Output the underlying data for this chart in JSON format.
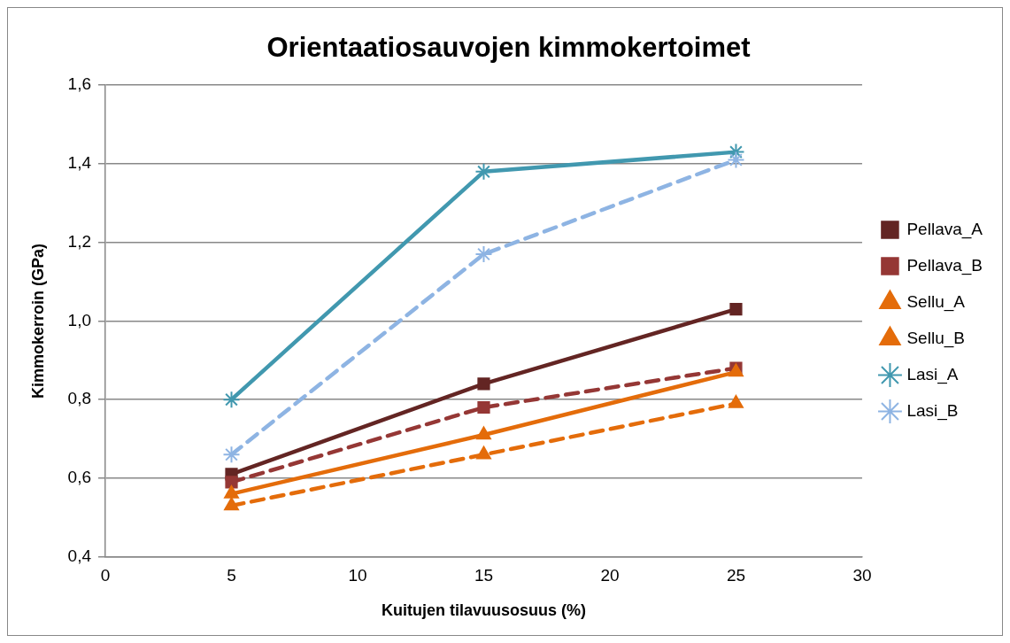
{
  "chart_data": {
    "type": "line",
    "title": "Orientaatiosauvojen kimmokertoimet",
    "xlabel": "Kuitujen tilavuusosuus (%)",
    "ylabel": "Kimmokerroin (GPa)",
    "x": [
      5,
      15,
      25
    ],
    "xlim": [
      0,
      30
    ],
    "xticks": [
      0,
      5,
      10,
      15,
      20,
      25,
      30
    ],
    "ylim": [
      0.4,
      1.6
    ],
    "yticks": [
      {
        "value": 0.4,
        "label": "0,4"
      },
      {
        "value": 0.6,
        "label": "0,6"
      },
      {
        "value": 0.8,
        "label": "0,8"
      },
      {
        "value": 1.0,
        "label": "1,0"
      },
      {
        "value": 1.2,
        "label": "1,2"
      },
      {
        "value": 1.4,
        "label": "1,4"
      },
      {
        "value": 1.6,
        "label": "1,6"
      }
    ],
    "grid": "y",
    "legend": "right",
    "series": [
      {
        "name": "Pellava_A",
        "color": "#632523",
        "marker": "square",
        "line_style": "solid",
        "values": [
          0.61,
          0.84,
          1.03
        ]
      },
      {
        "name": "Pellava_B",
        "color": "#953735",
        "marker": "square",
        "line_style": "dashed",
        "values": [
          0.59,
          0.78,
          0.88
        ]
      },
      {
        "name": "Sellu_A",
        "color": "#e46c0a",
        "marker": "triangle",
        "line_style": "solid",
        "values": [
          0.56,
          0.71,
          0.87
        ]
      },
      {
        "name": "Sellu_B",
        "color": "#e46c0a",
        "marker": "triangle",
        "line_style": "dashed",
        "values": [
          0.53,
          0.66,
          0.79
        ]
      },
      {
        "name": "Lasi_A",
        "color": "#4198af",
        "marker": "cross",
        "line_style": "solid",
        "values": [
          0.8,
          1.38,
          1.43
        ]
      },
      {
        "name": "Lasi_B",
        "color": "#8eb4e3",
        "marker": "cross",
        "line_style": "dashed",
        "values": [
          0.66,
          1.17,
          1.41
        ]
      }
    ]
  }
}
